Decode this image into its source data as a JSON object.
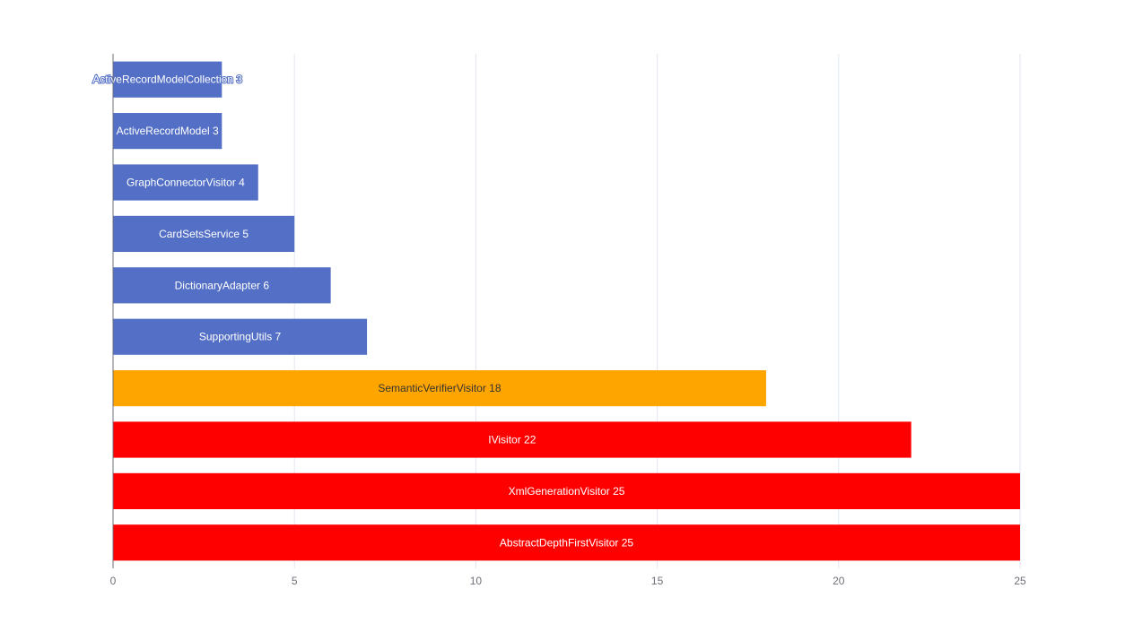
{
  "chart_data": {
    "type": "bar",
    "orientation": "horizontal",
    "categories": [
      "ActiveRecordModelCollection",
      "ActiveRecordModel",
      "GraphConnectorVisitor",
      "CardSetsService",
      "DictionaryAdapter",
      "SupportingUtils",
      "SemanticVerifierVisitor",
      "IVisitor",
      "XmlGenerationVisitor",
      "AbstractDepthFirstVisitor"
    ],
    "values": [
      3,
      3,
      4,
      5,
      6,
      7,
      18,
      22,
      25,
      25
    ],
    "bar_colors": [
      "#5470c6",
      "#5470c6",
      "#5470c6",
      "#5470c6",
      "#5470c6",
      "#5470c6",
      "#ffa500",
      "#ff0000",
      "#ff0000",
      "#ff0000"
    ],
    "label_colors": [
      "#ffffff",
      "#ffffff",
      "#ffffff",
      "#ffffff",
      "#ffffff",
      "#ffffff",
      "#333333",
      "#ffffff",
      "#ffffff",
      "#ffffff"
    ],
    "x_ticks": [
      0,
      5,
      10,
      15,
      20,
      25
    ],
    "xlim": [
      0,
      25
    ],
    "title": "",
    "xlabel": "",
    "ylabel": "",
    "grid": true,
    "legend": false
  }
}
